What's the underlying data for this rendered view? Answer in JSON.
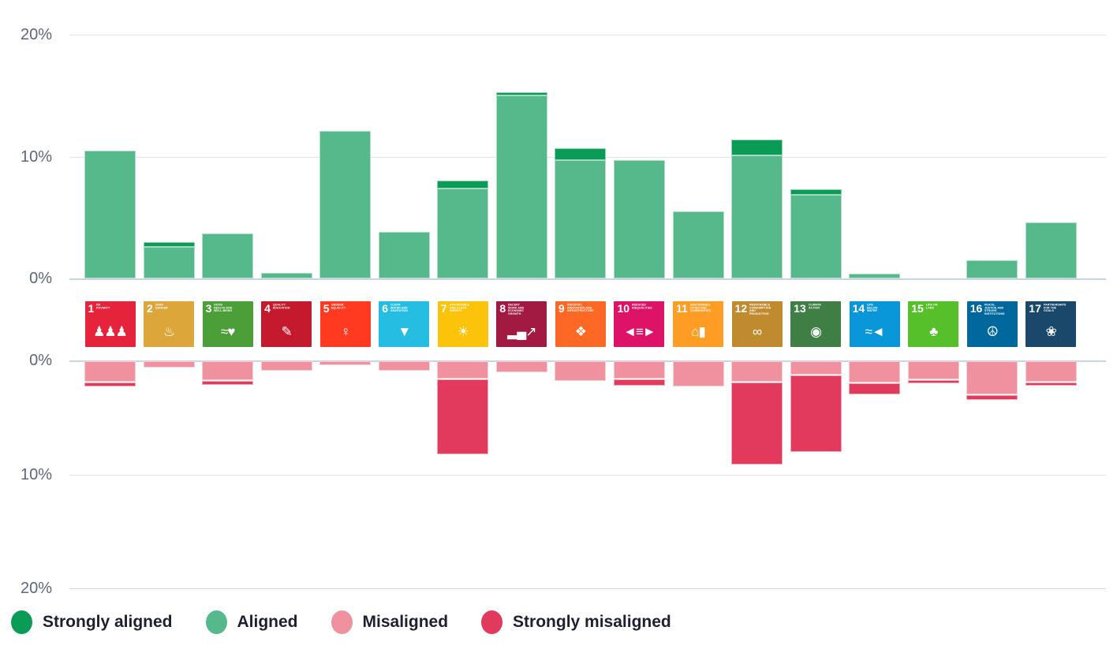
{
  "chart_data": {
    "type": "bar",
    "subtype": "diverging-stacked",
    "title": "",
    "xlabel": "",
    "ylabel": "",
    "unit": "%",
    "ylim_top": [
      0,
      20
    ],
    "ylim_bottom": [
      0,
      -20
    ],
    "grid": true,
    "legend_position": "bottom",
    "axis_ticks_top": [
      "20%",
      "10%",
      "0%"
    ],
    "axis_ticks_bottom": [
      "0%",
      "10%",
      "20%"
    ],
    "legend": [
      {
        "label": "Strongly aligned",
        "color": "#0A9B57"
      },
      {
        "label": "Aligned",
        "color": "#55B98B"
      },
      {
        "label": "Misaligned",
        "color": "#F0919F"
      },
      {
        "label": "Strongly misaligned",
        "color": "#E23A5C"
      }
    ],
    "categories": [
      "SDG 1",
      "SDG 2",
      "SDG 3",
      "SDG 4",
      "SDG 5",
      "SDG 6",
      "SDG 7",
      "SDG 8",
      "SDG 9",
      "SDG 10",
      "SDG 11",
      "SDG 12",
      "SDG 13",
      "SDG 14",
      "SDG 15",
      "SDG 16",
      "SDG 17"
    ],
    "series": [
      {
        "name": "Strongly aligned",
        "direction": "up",
        "values": [
          0,
          0.4,
          0,
          0,
          0,
          0,
          0.6,
          0.3,
          1.0,
          0,
          0,
          1.3,
          0.45,
          0,
          0,
          0,
          0
        ]
      },
      {
        "name": "Aligned",
        "direction": "up",
        "values": [
          10.5,
          2.6,
          3.7,
          0.45,
          12.1,
          3.8,
          7.4,
          15.0,
          9.7,
          9.7,
          5.5,
          10.1,
          6.85,
          0.4,
          0,
          1.5,
          4.6
        ]
      },
      {
        "name": "Misaligned",
        "direction": "down",
        "values": [
          1.8,
          0.55,
          1.65,
          0.8,
          0.35,
          0.8,
          1.5,
          0.95,
          1.7,
          1.55,
          2.2,
          1.8,
          1.2,
          1.9,
          1.6,
          2.9,
          1.8
        ]
      },
      {
        "name": "Strongly misaligned",
        "direction": "down",
        "values": [
          0.35,
          0,
          0.35,
          0,
          0,
          0,
          6.6,
          0,
          0,
          0.5,
          0,
          7.2,
          6.7,
          0.95,
          0.3,
          0.4,
          0.3
        ]
      }
    ]
  },
  "sdg_icons": [
    {
      "num": "1",
      "title": "No Poverty",
      "color": "#E5243B",
      "glyph": "♟♟♟"
    },
    {
      "num": "2",
      "title": "Zero Hunger",
      "color": "#DDA63A",
      "glyph": "♨"
    },
    {
      "num": "3",
      "title": "Good Health and Well-Being",
      "color": "#4C9F38",
      "glyph": "≈♥"
    },
    {
      "num": "4",
      "title": "Quality Education",
      "color": "#C5192D",
      "glyph": "✎"
    },
    {
      "num": "5",
      "title": "Gender Equality",
      "color": "#FF3A21",
      "glyph": "♀"
    },
    {
      "num": "6",
      "title": "Clean Water and Sanitation",
      "color": "#26BDE2",
      "glyph": "▼"
    },
    {
      "num": "7",
      "title": "Affordable and Clean Energy",
      "color": "#FCC30B",
      "glyph": "☀"
    },
    {
      "num": "8",
      "title": "Decent Work and Economic Growth",
      "color": "#A21942",
      "glyph": "▂▄↗"
    },
    {
      "num": "9",
      "title": "Industry, Innovation and Infrastructure",
      "color": "#FD6925",
      "glyph": "❖"
    },
    {
      "num": "10",
      "title": "Reduced Inequalities",
      "color": "#DD1367",
      "glyph": "◄≡►"
    },
    {
      "num": "11",
      "title": "Sustainable Cities and Communities",
      "color": "#FD9D24",
      "glyph": "⌂▮"
    },
    {
      "num": "12",
      "title": "Responsible Consumption and Production",
      "color": "#BF8B2E",
      "glyph": "∞"
    },
    {
      "num": "13",
      "title": "Climate Action",
      "color": "#3F7E44",
      "glyph": "◉"
    },
    {
      "num": "14",
      "title": "Life Below Water",
      "color": "#0A97D9",
      "glyph": "≈◄"
    },
    {
      "num": "15",
      "title": "Life on Land",
      "color": "#56C02B",
      "glyph": "♣"
    },
    {
      "num": "16",
      "title": "Peace, Justice and Strong Institutions",
      "color": "#00689D",
      "glyph": "☮"
    },
    {
      "num": "17",
      "title": "Partnerships for the Goals",
      "color": "#19486A",
      "glyph": "❀"
    }
  ]
}
